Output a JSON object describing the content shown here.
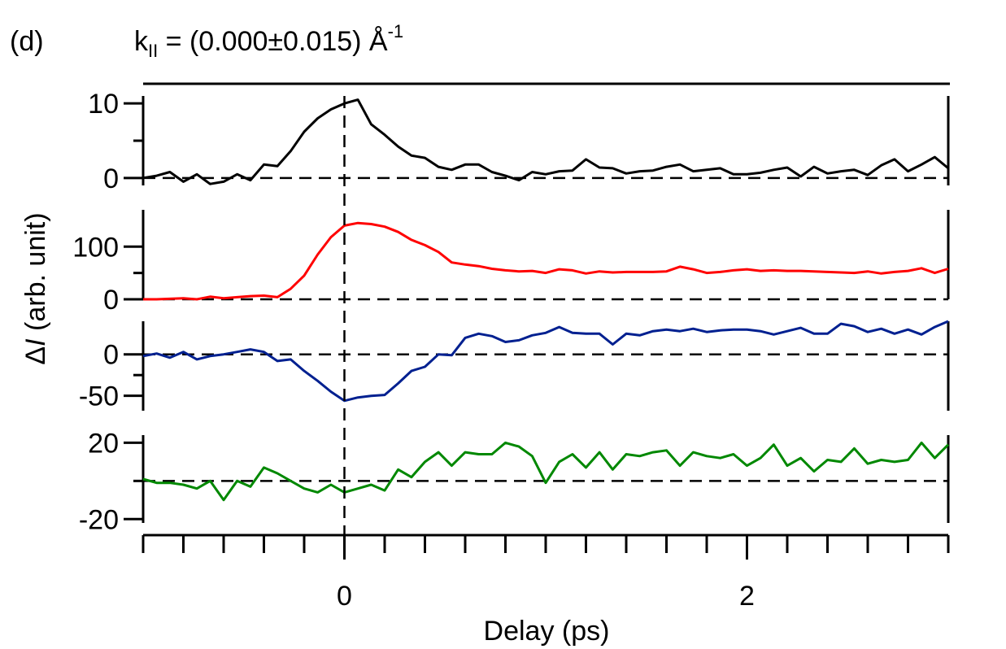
{
  "chart_data": {
    "type": "line",
    "panel_label": "(d)",
    "title": {
      "prefix": "k",
      "subscript": "II",
      "middle": " = (0.000±0.015) Å",
      "superscript": "-1"
    },
    "xlabel": "Delay (ps)",
    "ylabel": {
      "delta": "Δ",
      "italic": "I",
      "rest": " (arb. unit)"
    },
    "xlim": [
      -1,
      3
    ],
    "x_major_ticks": [
      0,
      2
    ],
    "x_minor_step": 0.2,
    "zero_line_x": 0,
    "x": [
      -1.0,
      -0.933,
      -0.867,
      -0.8,
      -0.733,
      -0.667,
      -0.6,
      -0.533,
      -0.467,
      -0.4,
      -0.333,
      -0.267,
      -0.2,
      -0.133,
      -0.067,
      0.0,
      0.067,
      0.133,
      0.2,
      0.267,
      0.333,
      0.4,
      0.467,
      0.533,
      0.6,
      0.667,
      0.733,
      0.8,
      0.867,
      0.933,
      1.0,
      1.067,
      1.133,
      1.2,
      1.267,
      1.333,
      1.4,
      1.467,
      1.533,
      1.6,
      1.667,
      1.733,
      1.8,
      1.867,
      1.933,
      2.0,
      2.067,
      2.133,
      2.2,
      2.267,
      2.333,
      2.4,
      2.467,
      2.533,
      2.6,
      2.667,
      2.733,
      2.8,
      2.867,
      2.933,
      3.0
    ],
    "panels": [
      {
        "color": "#000000",
        "ylim": [
          -1,
          11
        ],
        "yticks": [
          0,
          10
        ],
        "ytick_labels": [
          "0",
          "10"
        ],
        "zero_dashed": true,
        "values": [
          0.0,
          0.3,
          0.8,
          -0.5,
          0.5,
          -0.8,
          -0.5,
          0.5,
          -0.3,
          1.8,
          1.6,
          3.6,
          6.2,
          8.0,
          9.2,
          10.0,
          10.5,
          7.2,
          5.8,
          4.2,
          3.0,
          2.7,
          1.5,
          1.1,
          1.8,
          1.8,
          0.8,
          0.3,
          -0.3,
          0.8,
          0.5,
          0.9,
          1.0,
          2.5,
          1.4,
          1.3,
          0.6,
          0.9,
          1.0,
          1.5,
          1.8,
          0.9,
          1.1,
          1.3,
          0.5,
          0.5,
          0.7,
          1.1,
          1.4,
          0.2,
          1.5,
          0.6,
          0.9,
          1.1,
          0.4,
          1.7,
          2.5,
          0.9,
          1.8,
          2.8,
          1.3
        ]
      },
      {
        "color": "#ff0000",
        "ylim": [
          0,
          170
        ],
        "yticks": [
          0,
          100
        ],
        "ytick_labels": [
          "0",
          "100"
        ],
        "zero_dashed": true,
        "values": [
          0,
          0,
          1,
          2,
          0,
          5,
          2,
          4,
          6,
          7,
          4,
          20,
          45,
          85,
          118,
          140,
          145,
          143,
          138,
          128,
          113,
          103,
          90,
          70,
          66,
          63,
          58,
          55,
          53,
          54,
          50,
          57,
          55,
          49,
          53,
          51,
          52,
          52,
          52,
          53,
          62,
          57,
          50,
          52,
          55,
          57,
          54,
          55,
          54,
          54,
          53,
          52,
          51,
          50,
          53,
          49,
          52,
          54,
          59,
          50,
          58
        ]
      },
      {
        "color": "#002090",
        "ylim": [
          -68,
          40
        ],
        "yticks": [
          -50,
          0
        ],
        "ytick_labels": [
          "-50",
          "0"
        ],
        "zero_dashed": true,
        "values": [
          -2,
          1,
          -4,
          3,
          -6,
          -2,
          0,
          3,
          6,
          3,
          -8,
          -6,
          -20,
          -32,
          -45,
          -56,
          -52,
          -50,
          -49,
          -35,
          -20,
          -15,
          0,
          -1,
          20,
          25,
          22,
          15,
          17,
          23,
          26,
          33,
          26,
          25,
          25,
          12,
          25,
          23,
          28,
          30,
          28,
          31,
          27,
          29,
          30,
          30,
          28,
          24,
          28,
          32,
          25,
          25,
          37,
          34,
          27,
          31,
          25,
          30,
          24,
          33,
          40
        ]
      },
      {
        "color": "#008800",
        "ylim": [
          -22,
          24
        ],
        "yticks": [
          -20,
          20
        ],
        "ytick_labels": [
          "-20",
          "20"
        ],
        "zero_dashed": true,
        "values": [
          1,
          -1,
          -1,
          -2,
          -4,
          0,
          -10,
          0,
          -3,
          7,
          4,
          0,
          -4,
          -6,
          -2,
          -6,
          -4,
          -2,
          -5,
          6,
          2,
          10,
          15,
          8,
          15,
          14,
          14,
          20,
          18,
          13,
          -1,
          10,
          14,
          7,
          15,
          6,
          14,
          13,
          15,
          16,
          8,
          15,
          13,
          12,
          14,
          8,
          12,
          19,
          8,
          12,
          5,
          11,
          10,
          17,
          9,
          11,
          10,
          11,
          20,
          12,
          19
        ]
      }
    ]
  }
}
